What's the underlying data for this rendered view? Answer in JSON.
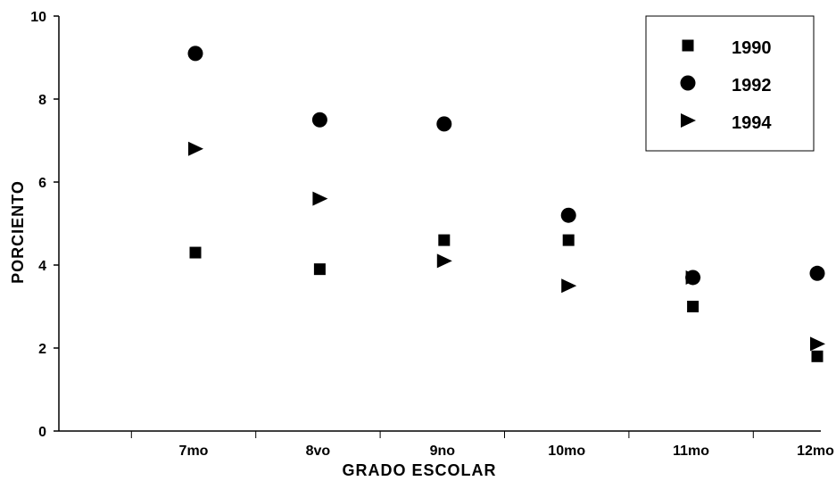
{
  "chart_data": {
    "type": "scatter",
    "categories": [
      "7mo",
      "8vo",
      "9no",
      "10mo",
      "11mo",
      "12mo"
    ],
    "xlabel": "GRADO ESCOLAR",
    "ylabel": "PORCIENTO",
    "ylim": [
      0,
      10
    ],
    "yticks": [
      "0",
      "2",
      "4",
      "6",
      "8",
      "10"
    ],
    "grid": false,
    "legend_position": "top-right",
    "series": [
      {
        "name": "1990",
        "marker": "square",
        "values": [
          4.3,
          3.9,
          4.6,
          4.6,
          3.0,
          1.8
        ]
      },
      {
        "name": "1992",
        "marker": "circle",
        "values": [
          9.1,
          7.5,
          7.4,
          5.2,
          3.7,
          3.8
        ]
      },
      {
        "name": "1994",
        "marker": "triangle-right",
        "values": [
          6.8,
          5.6,
          4.1,
          3.5,
          3.7,
          2.1
        ]
      }
    ]
  }
}
